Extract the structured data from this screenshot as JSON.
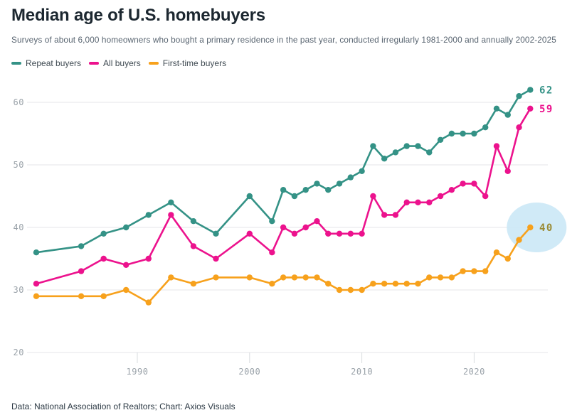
{
  "header": {
    "title": "Median age of U.S. homebuyers",
    "subtitle": "Surveys of about 6,000 homeowners who bought a primary residence in the past year, conducted irregularly 1981-2000 and annually 2002-2025"
  },
  "footer": {
    "credit": "Data: National Association of Realtors; Chart: Axios Visuals"
  },
  "chart_data": {
    "type": "line",
    "title": "Median age of U.S. homebuyers",
    "x": [
      1981,
      1985,
      1987,
      1989,
      1991,
      1993,
      1995,
      1997,
      2000,
      2002,
      2003,
      2004,
      2005,
      2006,
      2007,
      2008,
      2009,
      2010,
      2011,
      2012,
      2013,
      2014,
      2015,
      2016,
      2017,
      2018,
      2019,
      2020,
      2021,
      2022,
      2023,
      2024,
      2025
    ],
    "series": [
      {
        "name": "Repeat buyers",
        "color": "#349286",
        "end_label": "62",
        "end_label_color": "#349286",
        "values": [
          36,
          37,
          39,
          40,
          42,
          44,
          41,
          39,
          45,
          41,
          46,
          45,
          46,
          47,
          46,
          47,
          48,
          49,
          53,
          51,
          52,
          53,
          53,
          52,
          54,
          55,
          55,
          55,
          56,
          59,
          58,
          61,
          62
        ]
      },
      {
        "name": "All buyers",
        "color": "#ec128d",
        "end_label": "59",
        "end_label_color": "#ec128d",
        "values": [
          31,
          33,
          35,
          34,
          35,
          42,
          37,
          35,
          39,
          36,
          40,
          39,
          40,
          41,
          39,
          39,
          39,
          39,
          45,
          42,
          42,
          44,
          44,
          44,
          45,
          46,
          47,
          47,
          45,
          53,
          49,
          56,
          59
        ]
      },
      {
        "name": "First-time buyers",
        "color": "#f7a11c",
        "end_label": "40",
        "end_label_color": "#9a8a33",
        "values": [
          29,
          29,
          29,
          30,
          28,
          32,
          31,
          32,
          32,
          31,
          32,
          32,
          32,
          32,
          31,
          30,
          30,
          30,
          31,
          31,
          31,
          31,
          31,
          32,
          32,
          32,
          33,
          33,
          33,
          36,
          35,
          38,
          40
        ]
      }
    ],
    "y_ticks": [
      20,
      30,
      40,
      50,
      60
    ],
    "x_ticks": [
      1990,
      2000,
      2010,
      2020
    ],
    "ylim": [
      20,
      65
    ],
    "grid": true,
    "legend_position": "top-left",
    "highlight": {
      "series": "First-time buyers",
      "year": 2025,
      "value": 40,
      "color": "#cbe8f6"
    }
  },
  "style": {
    "grid_color": "#e4e6e9",
    "tick_color": "#d9dcdf",
    "axis_label_color": "#9aa2a9"
  }
}
